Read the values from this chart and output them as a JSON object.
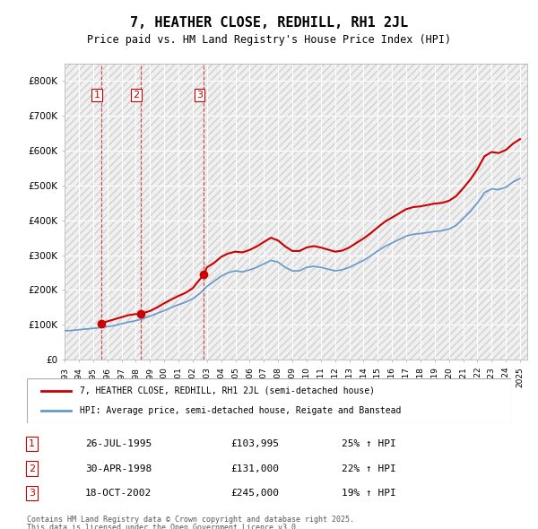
{
  "title": "7, HEATHER CLOSE, REDHILL, RH1 2JL",
  "subtitle": "Price paid vs. HM Land Registry's House Price Index (HPI)",
  "legend_line1": "7, HEATHER CLOSE, REDHILL, RH1 2JL (semi-detached house)",
  "legend_line2": "HPI: Average price, semi-detached house, Reigate and Banstead",
  "footer1": "Contains HM Land Registry data © Crown copyright and database right 2025.",
  "footer2": "This data is licensed under the Open Government Licence v3.0.",
  "transactions": [
    {
      "num": 1,
      "date": "26-JUL-1995",
      "price": 103995,
      "hpi": "25% ↑ HPI",
      "year": 1995.57
    },
    {
      "num": 2,
      "date": "30-APR-1998",
      "price": 131000,
      "hpi": "22% ↑ HPI",
      "year": 1998.33
    },
    {
      "num": 3,
      "date": "18-OCT-2002",
      "price": 245000,
      "hpi": "19% ↑ HPI",
      "year": 2002.79
    }
  ],
  "price_color": "#cc0000",
  "hpi_color": "#6699cc",
  "dashed_color": "#cc0000",
  "background_hatch_color": "#e0e0e0",
  "ylim": [
    0,
    850000
  ],
  "yticks": [
    0,
    100000,
    200000,
    300000,
    400000,
    500000,
    600000,
    700000,
    800000
  ],
  "ytick_labels": [
    "£0",
    "£100K",
    "£200K",
    "£300K",
    "£400K",
    "£500K",
    "£600K",
    "£700K",
    "£800K"
  ],
  "hpi_data": {
    "years": [
      1993,
      1993.5,
      1994,
      1994.5,
      1995,
      1995.5,
      1996,
      1996.5,
      1997,
      1997.5,
      1998,
      1998.5,
      1999,
      1999.5,
      2000,
      2000.5,
      2001,
      2001.5,
      2002,
      2002.5,
      2003,
      2003.5,
      2004,
      2004.5,
      2005,
      2005.5,
      2006,
      2006.5,
      2007,
      2007.5,
      2008,
      2008.5,
      2009,
      2009.5,
      2010,
      2010.5,
      2011,
      2011.5,
      2012,
      2012.5,
      2013,
      2013.5,
      2014,
      2014.5,
      2015,
      2015.5,
      2016,
      2016.5,
      2017,
      2017.5,
      2018,
      2018.5,
      2019,
      2019.5,
      2020,
      2020.5,
      2021,
      2021.5,
      2022,
      2022.5,
      2023,
      2023.5,
      2024,
      2024.5,
      2025
    ],
    "values": [
      83000,
      84000,
      86000,
      88000,
      90000,
      92000,
      95000,
      98000,
      103000,
      108000,
      112000,
      118000,
      125000,
      133000,
      141000,
      150000,
      158000,
      165000,
      175000,
      190000,
      210000,
      225000,
      240000,
      250000,
      255000,
      252000,
      258000,
      265000,
      275000,
      285000,
      280000,
      265000,
      255000,
      255000,
      265000,
      268000,
      265000,
      260000,
      255000,
      258000,
      265000,
      275000,
      285000,
      298000,
      312000,
      325000,
      335000,
      345000,
      355000,
      360000,
      362000,
      365000,
      368000,
      370000,
      375000,
      385000,
      405000,
      425000,
      450000,
      480000,
      490000,
      488000,
      495000,
      510000,
      520000
    ]
  },
  "price_paid_data": {
    "years": [
      1993,
      1993.5,
      1994,
      1994.5,
      1995,
      1995.57,
      1996,
      1996.5,
      1997,
      1997.5,
      1998,
      1998.33,
      1999,
      1999.5,
      2000,
      2000.5,
      2001,
      2001.5,
      2002,
      2002.79,
      2003,
      2003.5,
      2004,
      2004.5,
      2005,
      2005.5,
      2006,
      2006.5,
      2007,
      2007.5,
      2008,
      2008.5,
      2009,
      2009.5,
      2010,
      2010.5,
      2011,
      2011.5,
      2012,
      2012.5,
      2013,
      2013.5,
      2014,
      2014.5,
      2015,
      2015.5,
      2016,
      2016.5,
      2017,
      2017.5,
      2018,
      2018.5,
      2019,
      2019.5,
      2020,
      2020.5,
      2021,
      2021.5,
      2022,
      2022.5,
      2023,
      2023.5,
      2024,
      2024.5,
      2025
    ],
    "values": [
      null,
      null,
      null,
      null,
      null,
      103995,
      110000,
      116000,
      122000,
      128000,
      131000,
      131000,
      140000,
      150000,
      162000,
      173000,
      183000,
      192000,
      205000,
      245000,
      265000,
      278000,
      295000,
      305000,
      310000,
      308000,
      315000,
      325000,
      338000,
      350000,
      342000,
      325000,
      312000,
      312000,
      322000,
      326000,
      322000,
      316000,
      310000,
      313000,
      322000,
      335000,
      348000,
      363000,
      380000,
      396000,
      408000,
      420000,
      432000,
      438000,
      440000,
      444000,
      448000,
      450000,
      456000,
      469000,
      492000,
      517000,
      547000,
      584000,
      596000,
      593000,
      602000,
      620000,
      633000
    ]
  }
}
